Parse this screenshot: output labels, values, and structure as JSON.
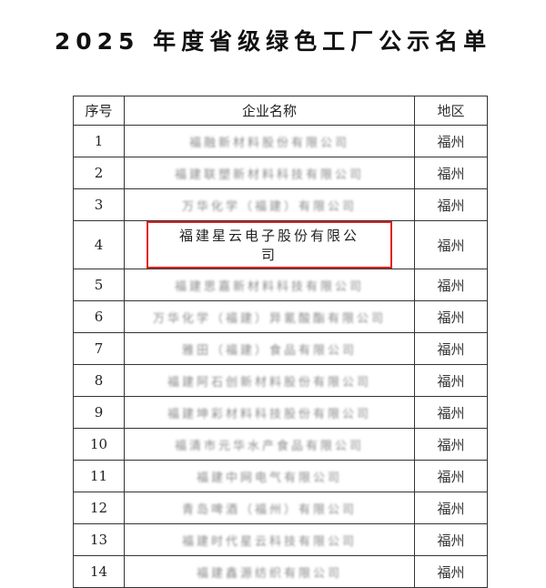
{
  "title": "2025 年度省级绿色工厂公示名单",
  "table": {
    "headers": [
      "序号",
      "企业名称",
      "地区"
    ],
    "rows": [
      {
        "no": "1",
        "name": "福融新材料股份有限公司",
        "region": "福州"
      },
      {
        "no": "2",
        "name": "福建联塑新材料科技有限公司",
        "region": "福州"
      },
      {
        "no": "3",
        "name": "万华化学（福建）有限公司",
        "region": "福州"
      },
      {
        "no": "4",
        "name": "福建星云电子股份有限公司",
        "region": "福州"
      },
      {
        "no": "5",
        "name": "福建思嘉新材料科技有限公司",
        "region": "福州"
      },
      {
        "no": "6",
        "name": "万华化学（福建）异氰酸酯有限公司",
        "region": "福州"
      },
      {
        "no": "7",
        "name": "雅田（福建）食品有限公司",
        "region": "福州"
      },
      {
        "no": "8",
        "name": "福建阿石创新材料股份有限公司",
        "region": "福州"
      },
      {
        "no": "9",
        "name": "福建坤彩材料科技股份有限公司",
        "region": "福州"
      },
      {
        "no": "10",
        "name": "福清市元华水产食品有限公司",
        "region": "福州"
      },
      {
        "no": "11",
        "name": "福建中网电气有限公司",
        "region": "福州"
      },
      {
        "no": "12",
        "name": "青岛啤酒（福州）有限公司",
        "region": "福州"
      },
      {
        "no": "13",
        "name": "福建时代星云科技有限公司",
        "region": "福州"
      },
      {
        "no": "14",
        "name": "福建鑫源纺织有限公司",
        "region": "福州"
      }
    ],
    "highlighted_row": 4,
    "highlight_color": "#e02020"
  }
}
